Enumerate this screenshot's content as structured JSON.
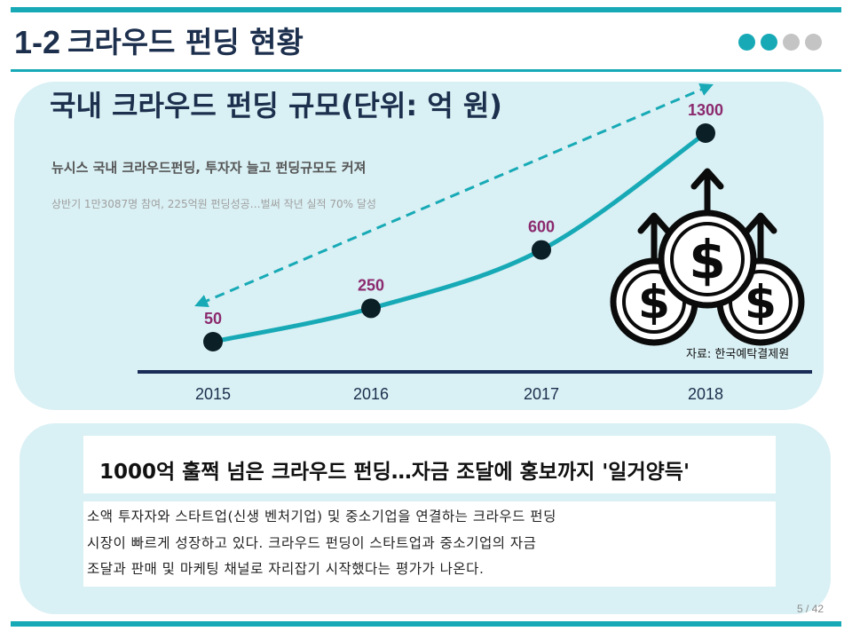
{
  "slide": {
    "number": "1-2",
    "title": "크라우드 펀딩 현황",
    "page": "5 / 42",
    "indicator": {
      "total": 4,
      "active": 2
    }
  },
  "colors": {
    "accent": "#17aab6",
    "navy": "#1c2f4d",
    "panel": "#d9f0f4",
    "value_label": "#8b2a6e",
    "point": "#0b1f26",
    "axis": "#1a2d57",
    "inactive_dot": "#c4c4c4"
  },
  "chart_heading": "국내 크라우드 펀딩 규모(단위: 억 원)",
  "news": {
    "headline": "뉴시스 국내 크라우드펀딩, 투자자 늘고 펀딩규모도 커져",
    "subline": "상반기 1만3087명 참여, 225억원 펀딩성공…벌써 작년 실적 70% 달성"
  },
  "icon": {
    "name": "money-growth-icon",
    "glyph": "$"
  },
  "chart_data": {
    "type": "line",
    "categories": [
      "2015",
      "2016",
      "2017",
      "2018"
    ],
    "values": [
      50,
      250,
      600,
      1300
    ],
    "value_labels": [
      "50",
      "250",
      "600",
      "1300"
    ],
    "unit": "억 원",
    "trend_arrow": "dashed, bidirectional",
    "grid": false,
    "legend": "none"
  },
  "source": "자료: 한국예탁결제원",
  "article": {
    "title": "1000억 훌쩍 넘은 크라우드 펀딩…자금 조달에 홍보까지 '일거양득'",
    "lines": [
      "소액 투자자와 스타트업(신생 벤처기업) 및 중소기업을 연결하는 크라우드 펀딩",
      "시장이 빠르게 성장하고 있다. 크라우드 펀딩이 스타트업과 중소기업의 자금",
      "조달과 판매 및 마케팅 채널로 자리잡기 시작했다는 평가가 나온다."
    ]
  }
}
